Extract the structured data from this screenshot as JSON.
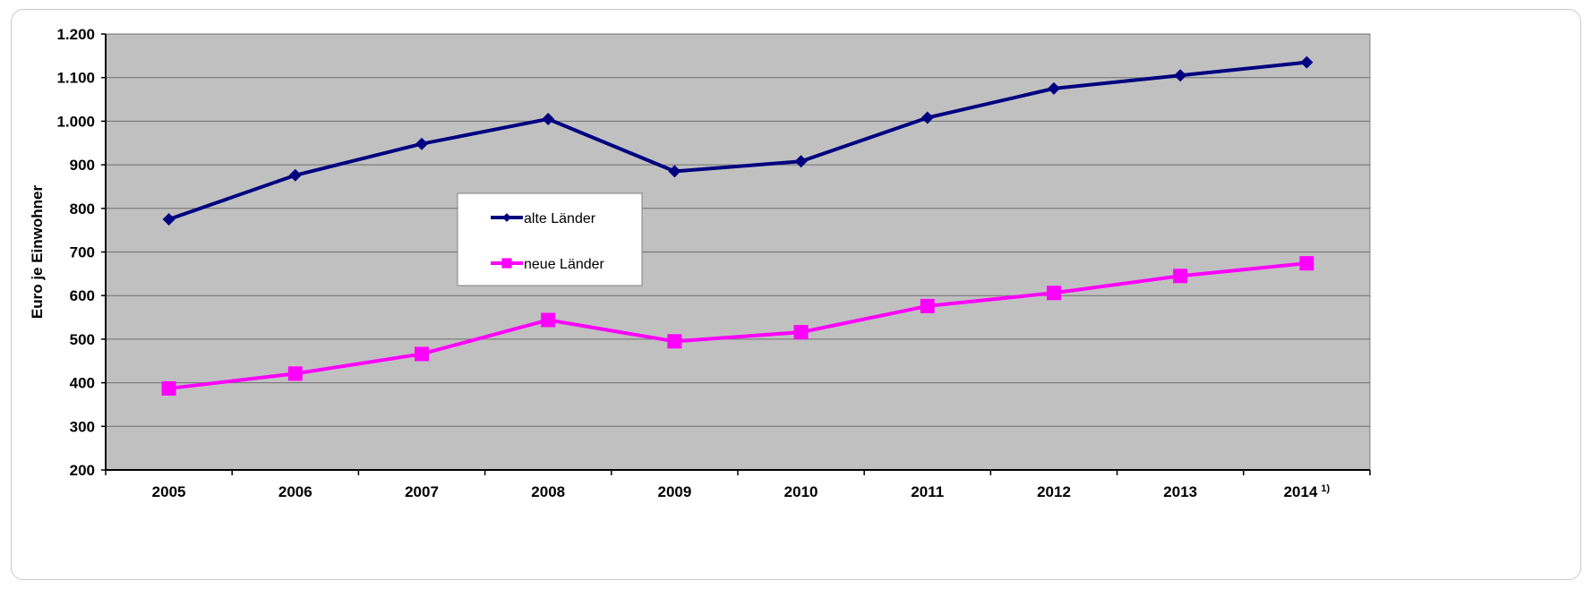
{
  "chart_data": {
    "type": "line",
    "categories": [
      "2005",
      "2006",
      "2007",
      "2008",
      "2009",
      "2010",
      "2011",
      "2012",
      "2013",
      "2014"
    ],
    "category_footnote": {
      "index": 9,
      "text": "1)"
    },
    "ylabel": "Euro je Einwohner",
    "xlabel": "",
    "ylim": [
      200,
      1200
    ],
    "yticks": [
      200,
      300,
      400,
      500,
      600,
      700,
      800,
      900,
      1000,
      1100,
      1200
    ],
    "ytick_labels": [
      "200",
      "300",
      "400",
      "500",
      "600",
      "700",
      "800",
      "900",
      "1.000",
      "1.100",
      "1.200"
    ],
    "grid": true,
    "plot_background": "#c0c0c0",
    "legend_position": "center-left",
    "series": [
      {
        "name": "alte Länder",
        "color": "#000080",
        "marker": "diamond",
        "values": [
          775,
          876,
          948,
          1005,
          885,
          908,
          1008,
          1075,
          1105,
          1135
        ]
      },
      {
        "name": "neue Länder",
        "color": "#ff00ff",
        "marker": "square",
        "values": [
          387,
          421,
          466,
          544,
          495,
          516,
          576,
          606,
          645,
          674
        ]
      }
    ]
  }
}
